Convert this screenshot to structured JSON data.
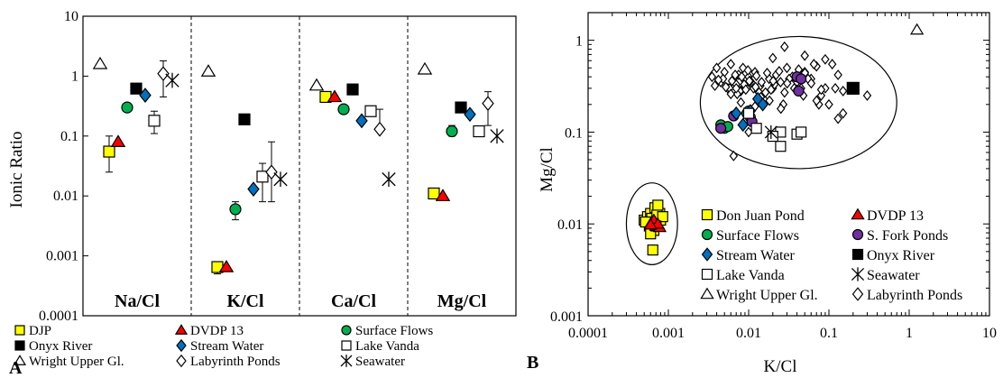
{
  "colors": {
    "DJP": "#ffff00",
    "DVDP 13": "#ff0000",
    "Surface Flows": "#00b050",
    "Onyx River": "#000000",
    "Stream Water": "#0070c0",
    "Lake Vanda": "#ffffff",
    "Wright Upper Gl.": "#ffffff",
    "Labyrinth Ponds": "#ffffff",
    "Seawater": "#000000",
    "S. Fork Ponds": "#7030a0"
  },
  "chart_data": [
    {
      "panel": "A",
      "type": "scatter",
      "ylabel": "Ionic Ratio",
      "ylim": [
        0.0001,
        10
      ],
      "yscale": "log",
      "yticks": [
        "10",
        "1",
        "0.1",
        "0.01",
        "0.001",
        "0.0001"
      ],
      "groups": [
        "Na/Cl",
        "K/Cl",
        "Ca/Cl",
        "Mg/Cl"
      ],
      "legend": [
        {
          "name": "DJP",
          "marker": "square"
        },
        {
          "name": "DVDP 13",
          "marker": "triangle"
        },
        {
          "name": "Surface Flows",
          "marker": "circle"
        },
        {
          "name": "Onyx River",
          "marker": "square"
        },
        {
          "name": "Stream Water",
          "marker": "diamond"
        },
        {
          "name": "Lake Vanda",
          "marker": "square"
        },
        {
          "name": "Wright Upper Gl.",
          "marker": "triangle"
        },
        {
          "name": "Labyrinth Ponds",
          "marker": "diamond"
        },
        {
          "name": "Seawater",
          "marker": "asterisk"
        }
      ],
      "series": [
        {
          "name": "DJP",
          "marker": "square",
          "color": "#ffff00",
          "offset": 0,
          "values": [
            0.055,
            0.00065,
            0.45,
            0.011
          ],
          "err_low": [
            0.025,
            0.0005,
            null,
            null
          ],
          "err_high": [
            0.1,
            0.0008,
            null,
            null
          ]
        },
        {
          "name": "DVDP 13",
          "marker": "triangle",
          "color": "#ff0000",
          "offset": 1,
          "values": [
            0.08,
            0.00065,
            0.45,
            0.01
          ],
          "err_low": [
            null,
            null,
            null,
            null
          ],
          "err_high": [
            null,
            null,
            null,
            null
          ]
        },
        {
          "name": "Surface Flows",
          "marker": "circle",
          "color": "#00b050",
          "offset": 2,
          "values": [
            0.3,
            0.006,
            0.28,
            0.12
          ],
          "err_low": [
            null,
            0.004,
            null,
            0.1
          ],
          "err_high": [
            null,
            0.008,
            null,
            0.15
          ]
        },
        {
          "name": "Wright Upper Gl.",
          "marker": "triangle",
          "color": "#ffffff",
          "offset": -1,
          "values": [
            1.6,
            1.2,
            0.7,
            1.3
          ],
          "err_low": [
            null,
            null,
            null,
            null
          ],
          "err_high": [
            null,
            null,
            null,
            null
          ]
        },
        {
          "name": "Onyx River",
          "marker": "square",
          "color": "#000000",
          "offset": 3,
          "values": [
            0.62,
            0.19,
            0.6,
            0.3
          ],
          "err_low": [
            null,
            null,
            null,
            null
          ],
          "err_high": [
            null,
            null,
            null,
            null
          ]
        },
        {
          "name": "Stream Water",
          "marker": "diamond",
          "color": "#0070c0",
          "offset": 4,
          "values": [
            0.48,
            0.013,
            0.18,
            0.23
          ],
          "err_low": [
            null,
            null,
            null,
            null
          ],
          "err_high": [
            null,
            null,
            null,
            null
          ]
        },
        {
          "name": "Lake Vanda",
          "marker": "square",
          "color": "#ffffff",
          "offset": 5,
          "values": [
            0.18,
            0.021,
            0.26,
            0.12
          ],
          "err_low": [
            0.11,
            0.008,
            null,
            null
          ],
          "err_high": [
            0.26,
            0.035,
            null,
            null
          ]
        },
        {
          "name": "Labyrinth Ponds",
          "marker": "diamond",
          "color": "#ffffff",
          "offset": 6,
          "values": [
            1.1,
            0.025,
            0.13,
            0.35
          ],
          "err_low": [
            0.45,
            0.008,
            null,
            0.15
          ],
          "err_high": [
            1.8,
            0.08,
            0.28,
            0.55
          ]
        },
        {
          "name": "Seawater",
          "marker": "asterisk",
          "color": "#000000",
          "offset": 7,
          "values": [
            0.85,
            0.019,
            0.019,
            0.1
          ],
          "err_low": [
            null,
            null,
            null,
            null
          ],
          "err_high": [
            null,
            null,
            null,
            null
          ]
        }
      ]
    },
    {
      "panel": "B",
      "type": "scatter",
      "xlabel": "K/Cl",
      "ylabel": "Mg/Cl",
      "xscale": "log",
      "yscale": "log",
      "xlim": [
        0.0001,
        10
      ],
      "ylim": [
        0.001,
        2
      ],
      "xticks": [
        "0.0001",
        "0.001",
        "0.01",
        "0.1",
        "1",
        "10"
      ],
      "yticks": [
        "1",
        "0.1",
        "0.01",
        "0.001"
      ],
      "legend": [
        {
          "name": "Don Juan Pond",
          "marker": "square"
        },
        {
          "name": "DVDP 13",
          "marker": "triangle"
        },
        {
          "name": "Surface Flows",
          "marker": "circle"
        },
        {
          "name": "S. Fork Ponds",
          "marker": "circle"
        },
        {
          "name": "Stream Water",
          "marker": "diamond"
        },
        {
          "name": "Onyx River",
          "marker": "square"
        },
        {
          "name": "Lake Vanda",
          "marker": "square"
        },
        {
          "name": "Seawater",
          "marker": "asterisk"
        },
        {
          "name": "Wright Upper Gl.",
          "marker": "triangle"
        },
        {
          "name": "Labyrinth Ponds",
          "marker": "diamond"
        }
      ],
      "series": [
        {
          "name": "Labyrinth Ponds",
          "marker": "diamond",
          "color": "#ffffff",
          "x": [
            0.0035,
            0.004,
            0.0045,
            0.005,
            0.0055,
            0.006,
            0.0065,
            0.007,
            0.0075,
            0.008,
            0.0085,
            0.009,
            0.0095,
            0.01,
            0.011,
            0.012,
            0.013,
            0.014,
            0.015,
            0.016,
            0.018,
            0.02,
            0.022,
            0.025,
            0.028,
            0.03,
            0.035,
            0.04,
            0.045,
            0.05,
            0.06,
            0.07,
            0.08,
            0.1,
            0.12,
            0.15,
            0.0038,
            0.0048,
            0.0058,
            0.0068,
            0.0078,
            0.0088,
            0.0098,
            0.0105,
            0.0115,
            0.0125,
            0.0135,
            0.0145,
            0.017,
            0.019,
            0.021,
            0.024,
            0.027,
            0.032,
            0.037,
            0.042,
            0.048,
            0.055,
            0.065,
            0.075,
            0.09,
            0.11,
            0.13,
            0.0042,
            0.0052,
            0.0062,
            0.0072,
            0.0082,
            0.0092,
            0.0102,
            0.0122,
            0.0142,
            0.0162,
            0.0182,
            0.0202,
            0.0252,
            0.0302,
            0.0402,
            0.0502,
            0.0602,
            0.0702,
            0.0802,
            0.15,
            0.09,
            0.13,
            0.006,
            0.008,
            0.012,
            0.02,
            0.05,
            0.028,
            0.0065,
            0.01,
            0.007,
            0.3
          ],
          "y": [
            0.4,
            0.5,
            0.35,
            0.45,
            0.3,
            0.55,
            0.38,
            0.33,
            0.42,
            0.28,
            0.5,
            0.36,
            0.3,
            0.4,
            0.34,
            0.45,
            0.28,
            0.32,
            0.25,
            0.22,
            0.38,
            0.3,
            0.42,
            0.35,
            0.27,
            0.5,
            0.4,
            0.35,
            0.3,
            0.45,
            0.38,
            0.52,
            0.25,
            0.2,
            0.3,
            0.28,
            0.32,
            0.38,
            0.3,
            0.42,
            0.28,
            0.33,
            0.47,
            0.36,
            0.3,
            0.41,
            0.27,
            0.35,
            0.44,
            0.29,
            0.33,
            0.46,
            0.2,
            0.38,
            0.3,
            0.48,
            0.25,
            0.38,
            0.55,
            0.2,
            0.3,
            0.55,
            0.42,
            0.37,
            0.31,
            0.36,
            0.26,
            0.4,
            0.29,
            0.36,
            0.31,
            0.24,
            0.27,
            0.22,
            0.36,
            0.18,
            0.34,
            0.29,
            0.44,
            0.34,
            0.22,
            0.29,
            0.16,
            0.62,
            0.14,
            0.26,
            0.21,
            0.19,
            0.64,
            0.68,
            0.85,
            0.055,
            0.1,
            0.3,
            0.25
          ]
        },
        {
          "name": "Don Juan Pond",
          "marker": "square",
          "color": "#ffff00",
          "x": [
            0.0005,
            0.00055,
            0.0006,
            0.00065,
            0.0007,
            0.00075,
            0.0008,
            0.00058,
            0.00068,
            0.00078,
            0.00062,
            0.00072,
            0.00052,
            0.00066,
            0.00074,
            0.0006,
            0.00085,
            0.0007,
            0.00064
          ],
          "y": [
            0.011,
            0.012,
            0.013,
            0.0105,
            0.014,
            0.012,
            0.011,
            0.0095,
            0.015,
            0.013,
            0.0115,
            0.0125,
            0.0105,
            0.0085,
            0.016,
            0.0078,
            0.012,
            0.0095,
            0.0052
          ]
        },
        {
          "name": "DVDP 13",
          "marker": "triangle",
          "color": "#ff0000",
          "x": [
            0.00062,
            0.0007,
            0.00078,
            0.00066,
            0.00074,
            0.0006
          ],
          "y": [
            0.0105,
            0.0095,
            0.0092,
            0.011,
            0.01,
            0.0098
          ]
        },
        {
          "name": "Surface Flows",
          "marker": "circle",
          "color": "#00b050",
          "x": [
            0.0045,
            0.005,
            0.0055,
            0.0095,
            0.01,
            0.0105
          ],
          "y": [
            0.12,
            0.11,
            0.115,
            0.16,
            0.17,
            0.145
          ]
        },
        {
          "name": "S. Fork Ponds",
          "marker": "circle",
          "color": "#7030a0",
          "x": [
            0.0065,
            0.011,
            0.04,
            0.045,
            0.042,
            0.0045
          ],
          "y": [
            0.15,
            0.13,
            0.4,
            0.38,
            0.28,
            0.11
          ]
        },
        {
          "name": "Stream Water",
          "marker": "diamond",
          "color": "#0070c0",
          "x": [
            0.007,
            0.0105,
            0.013,
            0.015,
            0.0085
          ],
          "y": [
            0.16,
            0.17,
            0.23,
            0.2,
            0.12
          ]
        },
        {
          "name": "Onyx River",
          "marker": "square",
          "color": "#000000",
          "x": [
            0.2
          ],
          "y": [
            0.3
          ]
        },
        {
          "name": "Lake Vanda",
          "marker": "square",
          "color": "#ffffff",
          "x": [
            0.01,
            0.025,
            0.04,
            0.045,
            0.025,
            0.02,
            0.0125
          ],
          "y": [
            0.16,
            0.07,
            0.095,
            0.1,
            0.1,
            0.09,
            0.11
          ]
        },
        {
          "name": "Seawater",
          "marker": "asterisk",
          "color": "#000000",
          "x": [
            0.019
          ],
          "y": [
            0.1
          ]
        },
        {
          "name": "Wright Upper Gl.",
          "marker": "triangle",
          "color": "#ffffff",
          "x": [
            1.25
          ],
          "y": [
            1.3
          ]
        }
      ],
      "annotations": [
        {
          "shape": "ellipse",
          "encloses": "Labyrinth Ponds, Surface Flows, S. Fork Ponds, Stream Water, Onyx River, Lake Vanda, Seawater"
        },
        {
          "shape": "ellipse",
          "encloses": "Don Juan Pond, DVDP 13"
        }
      ]
    }
  ],
  "panel_letters": {
    "A": "A",
    "B": "B"
  }
}
